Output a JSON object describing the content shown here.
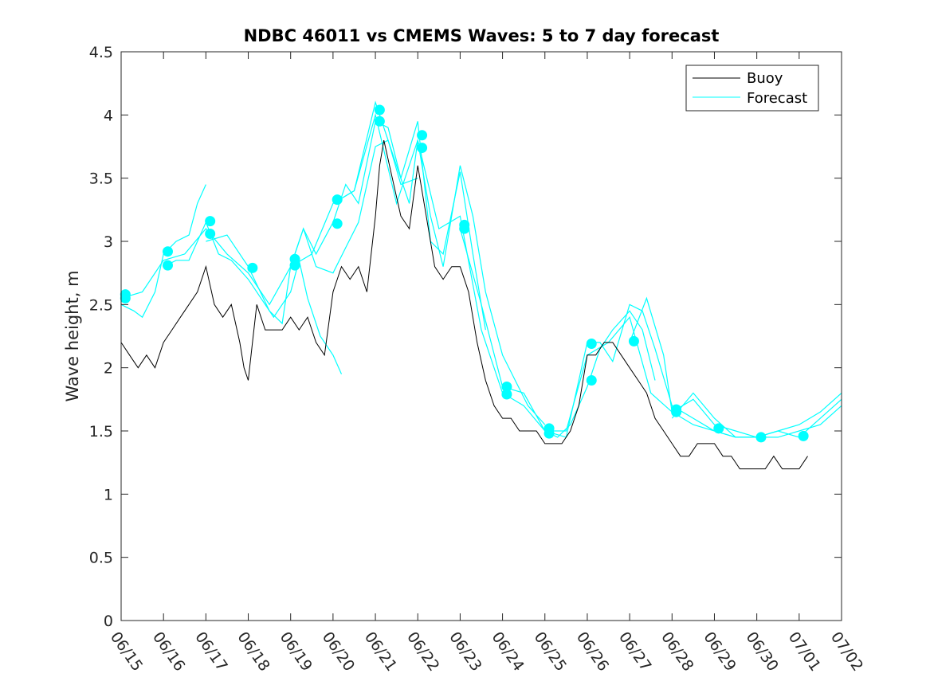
{
  "chart_data": {
    "type": "line",
    "title": "NDBC 46011 vs CMEMS Waves: 5 to 7 day forecast",
    "xlabel": "",
    "ylabel": "Wave height, m",
    "xlim": [
      0,
      17
    ],
    "ylim": [
      0,
      4.5
    ],
    "x_unit": "days since 06/15",
    "xtick_labels": [
      "06/15",
      "06/16",
      "06/17",
      "06/18",
      "06/19",
      "06/20",
      "06/21",
      "06/22",
      "06/23",
      "06/24",
      "06/25",
      "06/26",
      "06/27",
      "06/28",
      "06/29",
      "06/30",
      "07/01",
      "07/02"
    ],
    "ytick_labels": [
      "0",
      "0.5",
      "1",
      "1.5",
      "2",
      "2.5",
      "3",
      "3.5",
      "4",
      "4.5"
    ],
    "grid": false,
    "legend_position": "top-right",
    "colors": {
      "buoy": "#000000",
      "forecast": "#00ffff"
    },
    "series": [
      {
        "name": "Buoy",
        "color": "#000000",
        "points": [
          [
            0,
            2.2
          ],
          [
            0.2,
            2.1
          ],
          [
            0.4,
            2.0
          ],
          [
            0.6,
            2.1
          ],
          [
            0.8,
            2.0
          ],
          [
            1.0,
            2.2
          ],
          [
            1.2,
            2.3
          ],
          [
            1.4,
            2.4
          ],
          [
            1.6,
            2.5
          ],
          [
            1.8,
            2.6
          ],
          [
            2.0,
            2.8
          ],
          [
            2.2,
            2.5
          ],
          [
            2.4,
            2.4
          ],
          [
            2.6,
            2.5
          ],
          [
            2.8,
            2.2
          ],
          [
            2.9,
            2.0
          ],
          [
            3.0,
            1.9
          ],
          [
            3.1,
            2.2
          ],
          [
            3.2,
            2.5
          ],
          [
            3.4,
            2.3
          ],
          [
            3.6,
            2.3
          ],
          [
            3.8,
            2.3
          ],
          [
            4.0,
            2.4
          ],
          [
            4.2,
            2.3
          ],
          [
            4.4,
            2.4
          ],
          [
            4.6,
            2.2
          ],
          [
            4.8,
            2.1
          ],
          [
            5.0,
            2.6
          ],
          [
            5.2,
            2.8
          ],
          [
            5.4,
            2.7
          ],
          [
            5.6,
            2.8
          ],
          [
            5.8,
            2.6
          ],
          [
            6.0,
            3.2
          ],
          [
            6.1,
            3.6
          ],
          [
            6.2,
            3.8
          ],
          [
            6.4,
            3.5
          ],
          [
            6.6,
            3.2
          ],
          [
            6.8,
            3.1
          ],
          [
            7.0,
            3.6
          ],
          [
            7.2,
            3.2
          ],
          [
            7.4,
            2.8
          ],
          [
            7.6,
            2.7
          ],
          [
            7.8,
            2.8
          ],
          [
            8.0,
            2.8
          ],
          [
            8.2,
            2.6
          ],
          [
            8.4,
            2.2
          ],
          [
            8.6,
            1.9
          ],
          [
            8.8,
            1.7
          ],
          [
            9.0,
            1.6
          ],
          [
            9.2,
            1.6
          ],
          [
            9.4,
            1.5
          ],
          [
            9.6,
            1.5
          ],
          [
            9.8,
            1.5
          ],
          [
            10.0,
            1.4
          ],
          [
            10.2,
            1.4
          ],
          [
            10.4,
            1.4
          ],
          [
            10.6,
            1.5
          ],
          [
            10.8,
            1.7
          ],
          [
            11.0,
            2.1
          ],
          [
            11.2,
            2.1
          ],
          [
            11.4,
            2.2
          ],
          [
            11.6,
            2.2
          ],
          [
            11.8,
            2.1
          ],
          [
            12.0,
            2.0
          ],
          [
            12.2,
            1.9
          ],
          [
            12.4,
            1.8
          ],
          [
            12.6,
            1.6
          ],
          [
            12.8,
            1.5
          ],
          [
            13.0,
            1.4
          ],
          [
            13.2,
            1.3
          ],
          [
            13.4,
            1.3
          ],
          [
            13.6,
            1.4
          ],
          [
            13.8,
            1.4
          ],
          [
            14.0,
            1.4
          ],
          [
            14.2,
            1.3
          ],
          [
            14.4,
            1.3
          ],
          [
            14.6,
            1.2
          ],
          [
            14.8,
            1.2
          ],
          [
            15.0,
            1.2
          ],
          [
            15.2,
            1.2
          ],
          [
            15.4,
            1.3
          ],
          [
            15.6,
            1.2
          ],
          [
            15.8,
            1.2
          ],
          [
            16.0,
            1.2
          ],
          [
            16.2,
            1.3
          ]
        ]
      },
      {
        "name": "Forecast",
        "color": "#00ffff",
        "points": [
          [
            0,
            2.55
          ],
          [
            0.5,
            2.6
          ],
          [
            1.0,
            2.85
          ],
          [
            1.5,
            2.9
          ],
          [
            2.0,
            3.1
          ],
          [
            2.5,
            2.9
          ],
          [
            3.0,
            2.75
          ],
          [
            3.5,
            2.5
          ],
          [
            4.0,
            2.8
          ],
          [
            4.5,
            2.9
          ],
          [
            5.0,
            3.3
          ],
          [
            5.5,
            3.4
          ],
          [
            6.0,
            4.0
          ],
          [
            6.5,
            3.3
          ],
          [
            7.0,
            3.8
          ],
          [
            7.5,
            3.1
          ],
          [
            8.0,
            3.2
          ],
          [
            8.5,
            2.3
          ],
          [
            9.0,
            1.8
          ],
          [
            9.5,
            1.7
          ],
          [
            10.0,
            1.5
          ],
          [
            10.5,
            1.5
          ],
          [
            11.0,
            2.1
          ],
          [
            11.5,
            2.2
          ],
          [
            12.0,
            2.4
          ],
          [
            12.5,
            1.8
          ],
          [
            13.0,
            1.65
          ],
          [
            13.5,
            1.55
          ],
          [
            14.0,
            1.5
          ],
          [
            14.5,
            1.45
          ],
          [
            15.0,
            1.45
          ],
          [
            15.5,
            1.45
          ],
          [
            16.0,
            1.5
          ],
          [
            16.5,
            1.55
          ],
          [
            17.0,
            1.7
          ]
        ]
      }
    ],
    "forecast_overlays": [
      [
        [
          0,
          2.5
        ],
        [
          0.3,
          2.45
        ],
        [
          0.5,
          2.4
        ],
        [
          0.8,
          2.6
        ],
        [
          1.0,
          2.9
        ],
        [
          1.3,
          3.0
        ],
        [
          1.6,
          3.05
        ],
        [
          1.8,
          3.3
        ],
        [
          2.0,
          3.45
        ]
      ],
      [
        [
          1.0,
          2.8
        ],
        [
          1.3,
          2.85
        ],
        [
          1.6,
          2.85
        ],
        [
          2.0,
          3.15
        ],
        [
          2.3,
          2.9
        ],
        [
          2.6,
          2.85
        ],
        [
          3.0,
          2.7
        ],
        [
          3.3,
          2.55
        ],
        [
          3.6,
          2.4
        ],
        [
          4.0,
          2.6
        ],
        [
          4.2,
          2.85
        ],
        [
          4.4,
          2.55
        ],
        [
          4.7,
          2.25
        ],
        [
          5.0,
          2.1
        ],
        [
          5.2,
          1.95
        ]
      ],
      [
        [
          2.0,
          3.0
        ],
        [
          2.5,
          3.05
        ],
        [
          3.0,
          2.8
        ],
        [
          3.5,
          2.45
        ],
        [
          3.8,
          2.35
        ],
        [
          4.0,
          2.8
        ],
        [
          4.3,
          3.1
        ],
        [
          4.6,
          2.8
        ],
        [
          5.0,
          2.75
        ],
        [
          5.3,
          2.95
        ],
        [
          5.6,
          3.15
        ],
        [
          6.0,
          3.75
        ],
        [
          6.3,
          3.8
        ],
        [
          6.6,
          3.45
        ],
        [
          7.0,
          3.5
        ]
      ],
      [
        [
          4.0,
          2.8
        ],
        [
          4.3,
          3.1
        ],
        [
          4.6,
          2.9
        ],
        [
          5.0,
          3.15
        ],
        [
          5.3,
          3.45
        ],
        [
          5.6,
          3.3
        ],
        [
          6.0,
          3.95
        ],
        [
          6.3,
          3.9
        ],
        [
          6.6,
          3.5
        ],
        [
          7.0,
          3.95
        ],
        [
          7.3,
          3.0
        ],
        [
          7.6,
          2.9
        ],
        [
          8.0,
          3.55
        ],
        [
          8.3,
          2.9
        ],
        [
          8.6,
          2.3
        ]
      ],
      [
        [
          5.0,
          3.3
        ],
        [
          5.5,
          3.4
        ],
        [
          6.0,
          4.1
        ],
        [
          6.5,
          3.6
        ],
        [
          6.8,
          3.3
        ],
        [
          7.0,
          3.8
        ],
        [
          7.3,
          3.2
        ],
        [
          7.6,
          2.8
        ],
        [
          8.0,
          3.6
        ],
        [
          8.3,
          3.2
        ],
        [
          8.6,
          2.6
        ],
        [
          9.0,
          2.1
        ],
        [
          9.3,
          1.9
        ],
        [
          9.6,
          1.7
        ],
        [
          10.0,
          1.55
        ]
      ],
      [
        [
          8.0,
          3.1
        ],
        [
          8.5,
          2.5
        ],
        [
          9.0,
          1.85
        ],
        [
          9.5,
          1.8
        ],
        [
          10.0,
          1.5
        ],
        [
          10.3,
          1.45
        ],
        [
          10.6,
          1.55
        ],
        [
          11.0,
          1.85
        ],
        [
          11.3,
          2.15
        ],
        [
          11.6,
          2.3
        ],
        [
          12.0,
          2.45
        ],
        [
          12.3,
          2.3
        ],
        [
          12.6,
          1.9
        ]
      ],
      [
        [
          10.0,
          1.5
        ],
        [
          10.5,
          1.45
        ],
        [
          11.0,
          2.2
        ],
        [
          11.3,
          2.2
        ],
        [
          11.6,
          2.05
        ],
        [
          12.0,
          2.5
        ],
        [
          12.3,
          2.45
        ],
        [
          12.6,
          2.15
        ],
        [
          13.0,
          1.7
        ],
        [
          13.5,
          1.6
        ],
        [
          14.0,
          1.5
        ],
        [
          14.5,
          1.45
        ],
        [
          15.0,
          1.45
        ]
      ],
      [
        [
          12.0,
          2.2
        ],
        [
          12.4,
          2.55
        ],
        [
          12.8,
          2.1
        ],
        [
          13.0,
          1.65
        ],
        [
          13.5,
          1.75
        ],
        [
          14.0,
          1.55
        ],
        [
          14.5,
          1.5
        ],
        [
          15.0,
          1.45
        ],
        [
          15.5,
          1.5
        ],
        [
          16.0,
          1.45
        ],
        [
          16.5,
          1.6
        ],
        [
          17.0,
          1.75
        ]
      ],
      [
        [
          13.0,
          1.6
        ],
        [
          13.5,
          1.8
        ],
        [
          14.0,
          1.6
        ],
        [
          14.5,
          1.45
        ],
        [
          15.0,
          1.45
        ],
        [
          15.5,
          1.5
        ],
        [
          16.0,
          1.55
        ],
        [
          16.5,
          1.65
        ],
        [
          17.0,
          1.8
        ]
      ]
    ],
    "forecast_markers": [
      [
        0.1,
        2.58
      ],
      [
        0.1,
        2.55
      ],
      [
        1.1,
        2.92
      ],
      [
        1.1,
        2.81
      ],
      [
        2.1,
        3.16
      ],
      [
        2.1,
        3.06
      ],
      [
        3.1,
        2.79
      ],
      [
        4.1,
        2.86
      ],
      [
        4.1,
        2.81
      ],
      [
        5.1,
        3.33
      ],
      [
        5.1,
        3.14
      ],
      [
        6.1,
        4.04
      ],
      [
        6.1,
        3.95
      ],
      [
        7.1,
        3.84
      ],
      [
        7.1,
        3.74
      ],
      [
        8.1,
        3.13
      ],
      [
        8.1,
        3.1
      ],
      [
        9.1,
        1.85
      ],
      [
        9.1,
        1.79
      ],
      [
        10.1,
        1.52
      ],
      [
        10.1,
        1.48
      ],
      [
        11.1,
        2.19
      ],
      [
        11.1,
        1.9
      ],
      [
        12.1,
        2.21
      ],
      [
        13.1,
        1.67
      ],
      [
        13.1,
        1.65
      ],
      [
        14.1,
        1.52
      ],
      [
        15.1,
        1.45
      ],
      [
        16.1,
        1.46
      ]
    ]
  }
}
